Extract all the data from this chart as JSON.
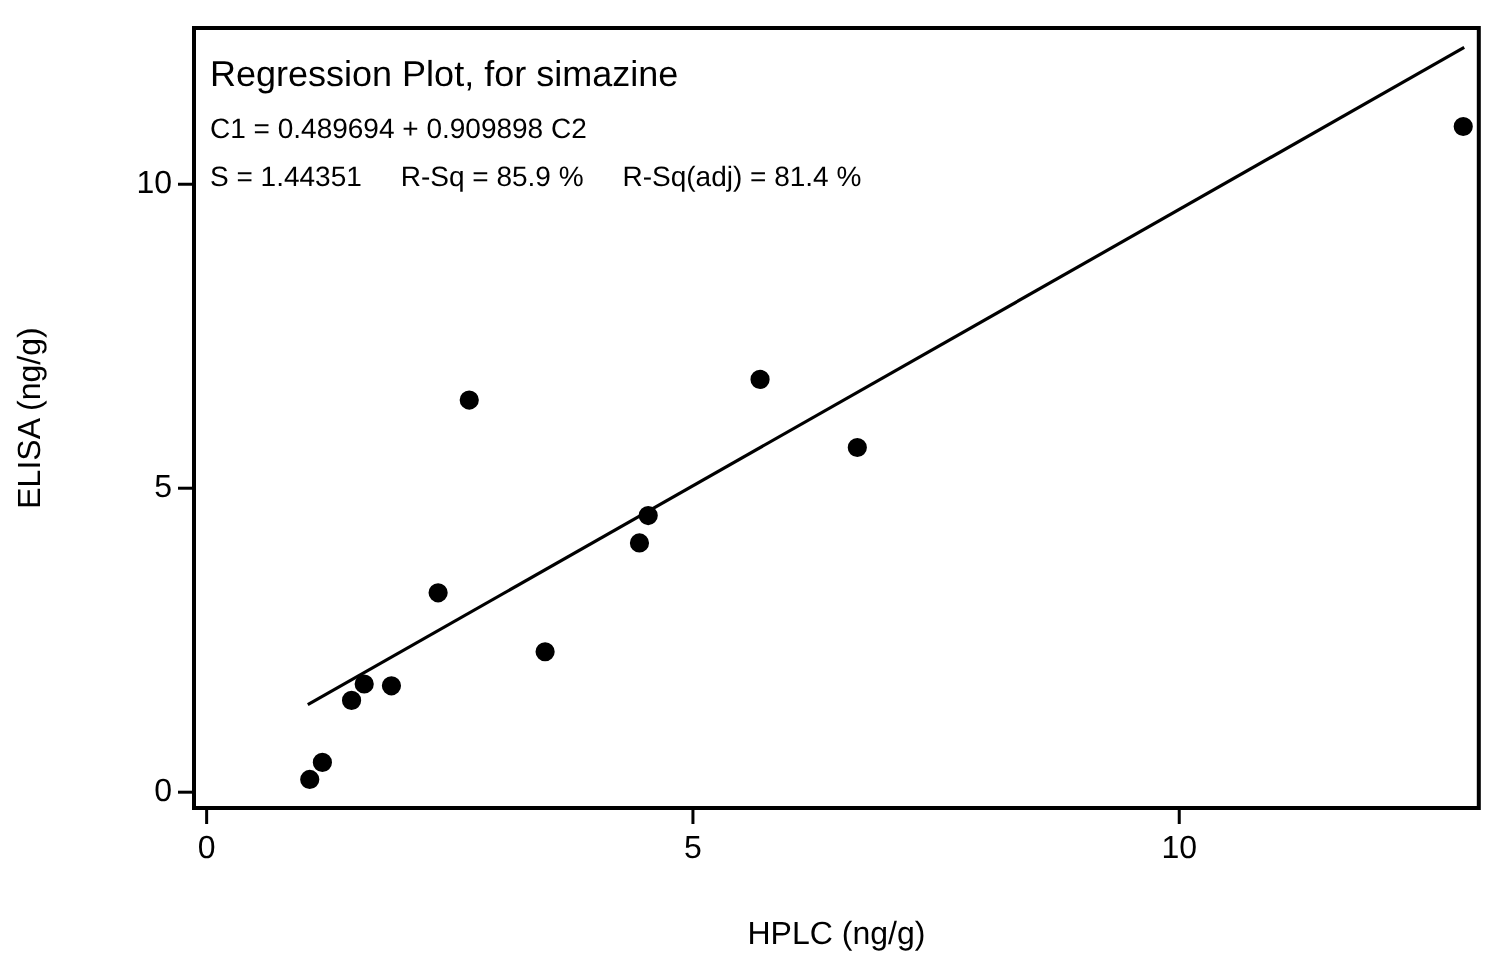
{
  "chart_data": {
    "type": "scatter",
    "title": "Regression Plot, for simazine",
    "annotations": [
      "C1 = 0.489694 + 0.909898 C2",
      "S = 1.44351     R-Sq = 85.9 %     R-Sq(adj) = 81.4 %"
    ],
    "xlabel": "HPLC (ng/g)",
    "ylabel": "ELISA (ng/g)",
    "xlim": [
      -0.13,
      13.08
    ],
    "ylim": [
      -0.26,
      12.57
    ],
    "xticks": [
      0,
      5,
      10
    ],
    "yticks": [
      0,
      5,
      10
    ],
    "grid": false,
    "legend": false,
    "marker": "circle",
    "series": [
      {
        "color": "#000000",
        "x": [
          1.06,
          1.19,
          1.49,
          1.62,
          1.9,
          2.38,
          2.7,
          3.48,
          4.45,
          4.54,
          5.69,
          6.69,
          12.92
        ],
        "values": [
          0.21,
          0.49,
          1.51,
          1.78,
          1.75,
          3.28,
          6.45,
          2.31,
          4.1,
          4.55,
          6.79,
          5.67,
          10.95
        ]
      },
      {
        "type": "line",
        "color": "#000000",
        "marker": "none",
        "line_style": "solid",
        "x": [
          1.04,
          12.93
        ],
        "values": [
          1.44,
          12.25
        ]
      }
    ]
  }
}
